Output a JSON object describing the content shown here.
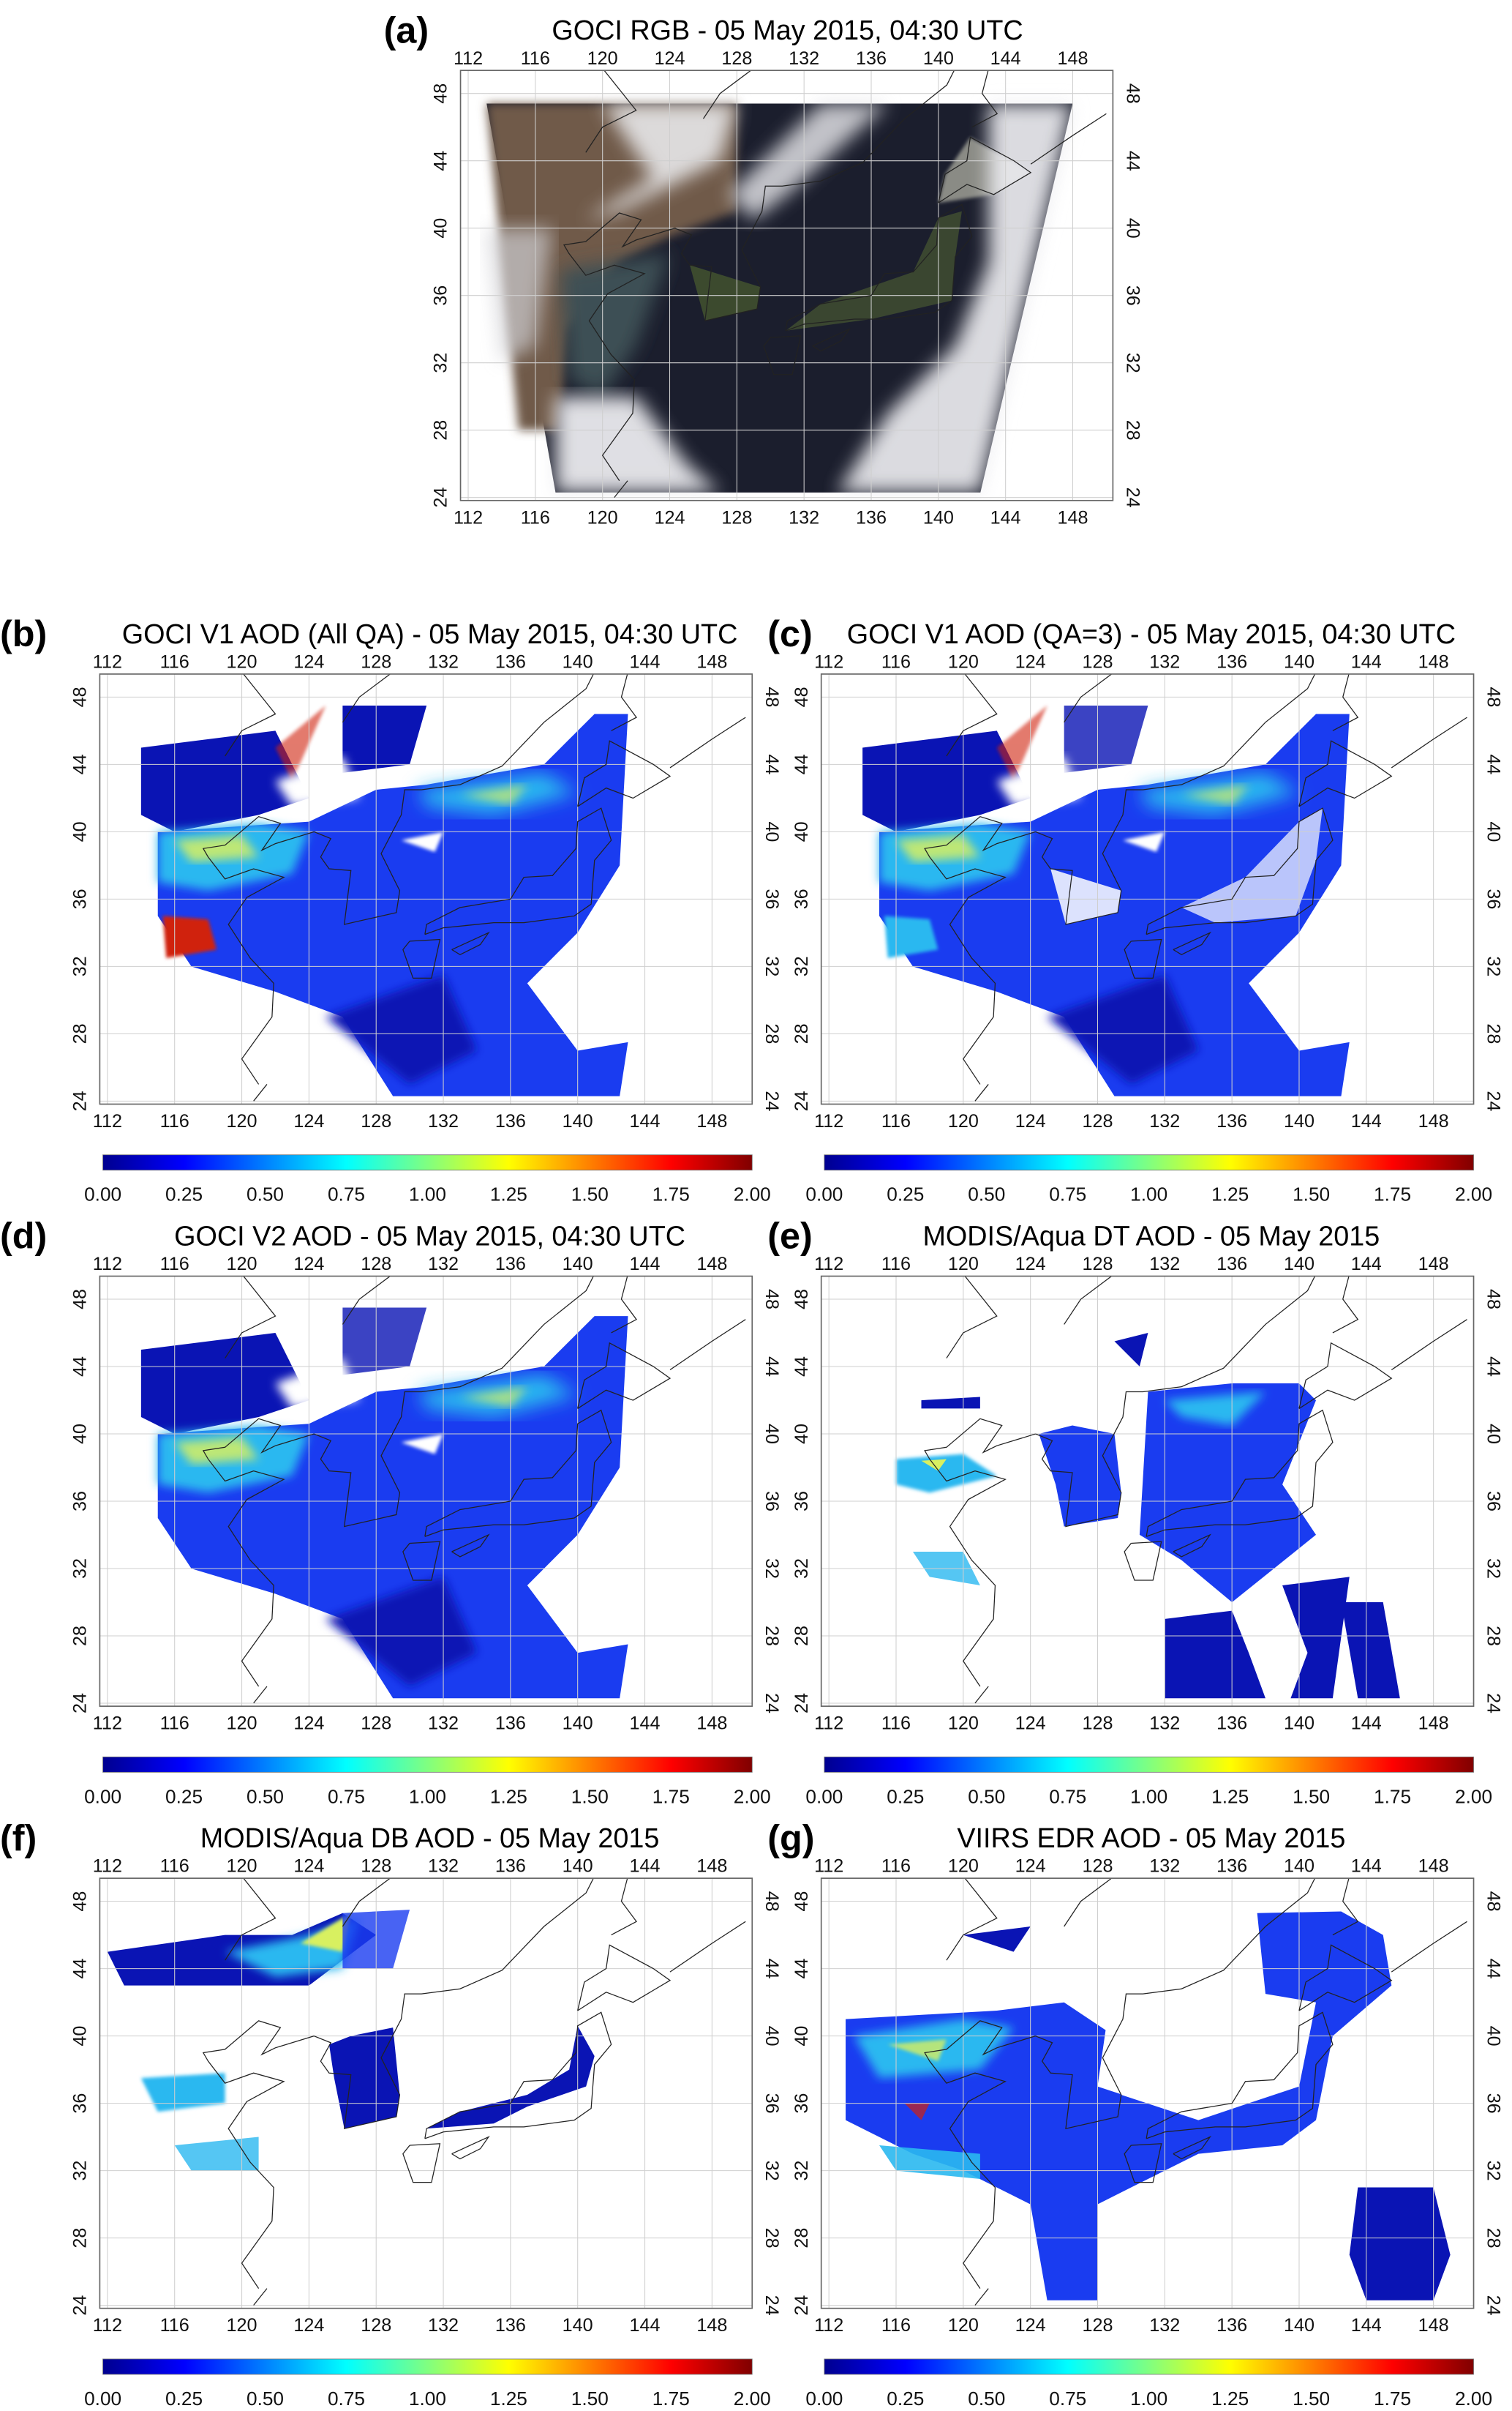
{
  "figure": {
    "panels": [
      {
        "id": "a",
        "label": "(a)",
        "title": "GOCI RGB - 05 May 2015, 04:30 UTC",
        "kind": "rgb"
      },
      {
        "id": "b",
        "label": "(b)",
        "title": "GOCI V1 AOD (All QA) - 05 May 2015, 04:30 UTC",
        "kind": "aod-full"
      },
      {
        "id": "c",
        "label": "(c)",
        "title": "GOCI V1 AOD (QA=3) - 05 May 2015, 04:30 UTC",
        "kind": "aod-qa3"
      },
      {
        "id": "d",
        "label": "(d)",
        "title": "GOCI V2 AOD - 05 May 2015, 04:30 UTC",
        "kind": "aod-v2"
      },
      {
        "id": "e",
        "label": "(e)",
        "title": "MODIS/Aqua DT AOD - 05 May 2015",
        "kind": "aod-dt"
      },
      {
        "id": "f",
        "label": "(f)",
        "title": "MODIS/Aqua DB AOD - 05 May 2015",
        "kind": "aod-db"
      },
      {
        "id": "g",
        "label": "(g)",
        "title": "VIIRS EDR AOD - 05 May 2015",
        "kind": "aod-viirs"
      }
    ],
    "lon_ticks": [
      "112",
      "116",
      "120",
      "124",
      "128",
      "132",
      "136",
      "140",
      "144",
      "148"
    ],
    "lat_ticks": [
      "48",
      "44",
      "40",
      "36",
      "32",
      "28",
      "24"
    ],
    "colorbar": {
      "ticks": [
        "0.00",
        "0.25",
        "0.50",
        "0.75",
        "1.00",
        "1.25",
        "1.50",
        "1.75",
        "2.00"
      ],
      "range": [
        0,
        2
      ],
      "colors": [
        "#00008f",
        "#0000ff",
        "#0080ff",
        "#00ffff",
        "#80ff80",
        "#ffff00",
        "#ff8000",
        "#ff0000",
        "#800000"
      ]
    }
  }
}
